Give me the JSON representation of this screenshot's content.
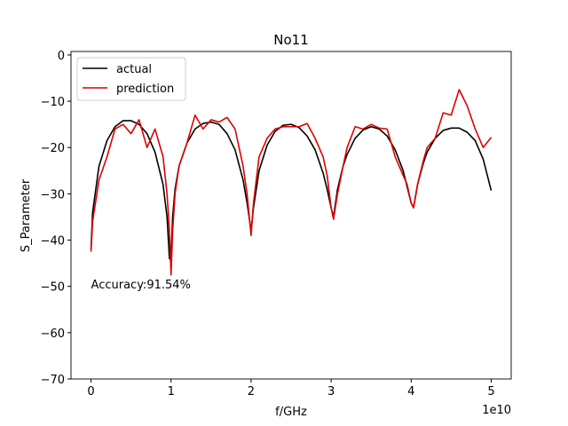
{
  "chart_data": {
    "type": "line",
    "title": "No11",
    "x_label": "f/GHz",
    "y_label": "S_Parameter",
    "x_offset_label": "1e10",
    "annotation": "Accuracy:91.54%",
    "legend": "upper left",
    "grid": false,
    "xlim": [
      -0.25,
      5.25
    ],
    "ylim": [
      -70,
      0.75
    ],
    "xticks": [
      0,
      1,
      2,
      3,
      4,
      5
    ],
    "yticks": [
      0,
      {
        "value": -10,
        "label": "−10"
      },
      {
        "value": -20,
        "label": "−20"
      },
      {
        "value": -30,
        "label": "−30"
      },
      {
        "value": -40,
        "label": "−40"
      },
      {
        "value": -50,
        "label": "−50"
      },
      {
        "value": -60,
        "label": "−60"
      },
      {
        "value": -70,
        "label": "−70"
      }
    ],
    "x": [
      0,
      0.02,
      0.1,
      0.2,
      0.3,
      0.4,
      0.5,
      0.6,
      0.7,
      0.8,
      0.9,
      0.95,
      0.98,
      1.0,
      1.02,
      1.05,
      1.1,
      1.2,
      1.3,
      1.4,
      1.5,
      1.6,
      1.7,
      1.8,
      1.9,
      1.95,
      2.0,
      2.03,
      2.1,
      2.2,
      2.3,
      2.4,
      2.5,
      2.6,
      2.7,
      2.8,
      2.9,
      2.95,
      3.0,
      3.03,
      3.08,
      3.15,
      3.2,
      3.3,
      3.4,
      3.5,
      3.6,
      3.7,
      3.8,
      3.9,
      3.95,
      4.0,
      4.03,
      4.08,
      4.15,
      4.2,
      4.3,
      4.4,
      4.5,
      4.6,
      4.7,
      4.8,
      4.9,
      5.0
    ],
    "series": [
      {
        "name": "actual",
        "color": "#000000",
        "values": [
          -42,
          -34,
          -24,
          -18.5,
          -15.5,
          -14.2,
          -14.2,
          -15,
          -17,
          -21,
          -28,
          -35,
          -44,
          -44,
          -35,
          -29,
          -24,
          -19,
          -16,
          -14.8,
          -14.5,
          -15,
          -17,
          -20.5,
          -27,
          -32,
          -38,
          -33,
          -25,
          -19.5,
          -16.5,
          -15.2,
          -15,
          -15.7,
          -17.5,
          -20.5,
          -25.5,
          -29,
          -33,
          -35,
          -29,
          -24,
          -21.5,
          -18,
          -16.2,
          -15.5,
          -16,
          -17.5,
          -20.5,
          -25,
          -28.5,
          -32,
          -33,
          -28,
          -23.5,
          -21,
          -18,
          -16.3,
          -15.8,
          -15.8,
          -16.7,
          -18.5,
          -22.5,
          -29.3
        ]
      },
      {
        "name": "prediction",
        "color": "#e00000",
        "values": [
          -42.5,
          -36,
          -27,
          -22,
          -16,
          -15,
          -17,
          -14,
          -20,
          -16,
          -22,
          -30,
          -38,
          -47.5,
          -38,
          -30,
          -24,
          -19,
          -13,
          -16,
          -14,
          -14.5,
          -13.5,
          -16,
          -24,
          -30,
          -39,
          -32,
          -22,
          -18,
          -16,
          -15.5,
          -15.5,
          -15.5,
          -14.8,
          -18,
          -22,
          -26,
          -33,
          -35.5,
          -30,
          -24,
          -20,
          -15.5,
          -16,
          -15,
          -15.8,
          -16,
          -22,
          -26,
          -28,
          -32,
          -33,
          -28,
          -23,
          -20,
          -18,
          -12.5,
          -13,
          -7.5,
          -11,
          -16,
          -20,
          -17.8
        ]
      }
    ]
  }
}
